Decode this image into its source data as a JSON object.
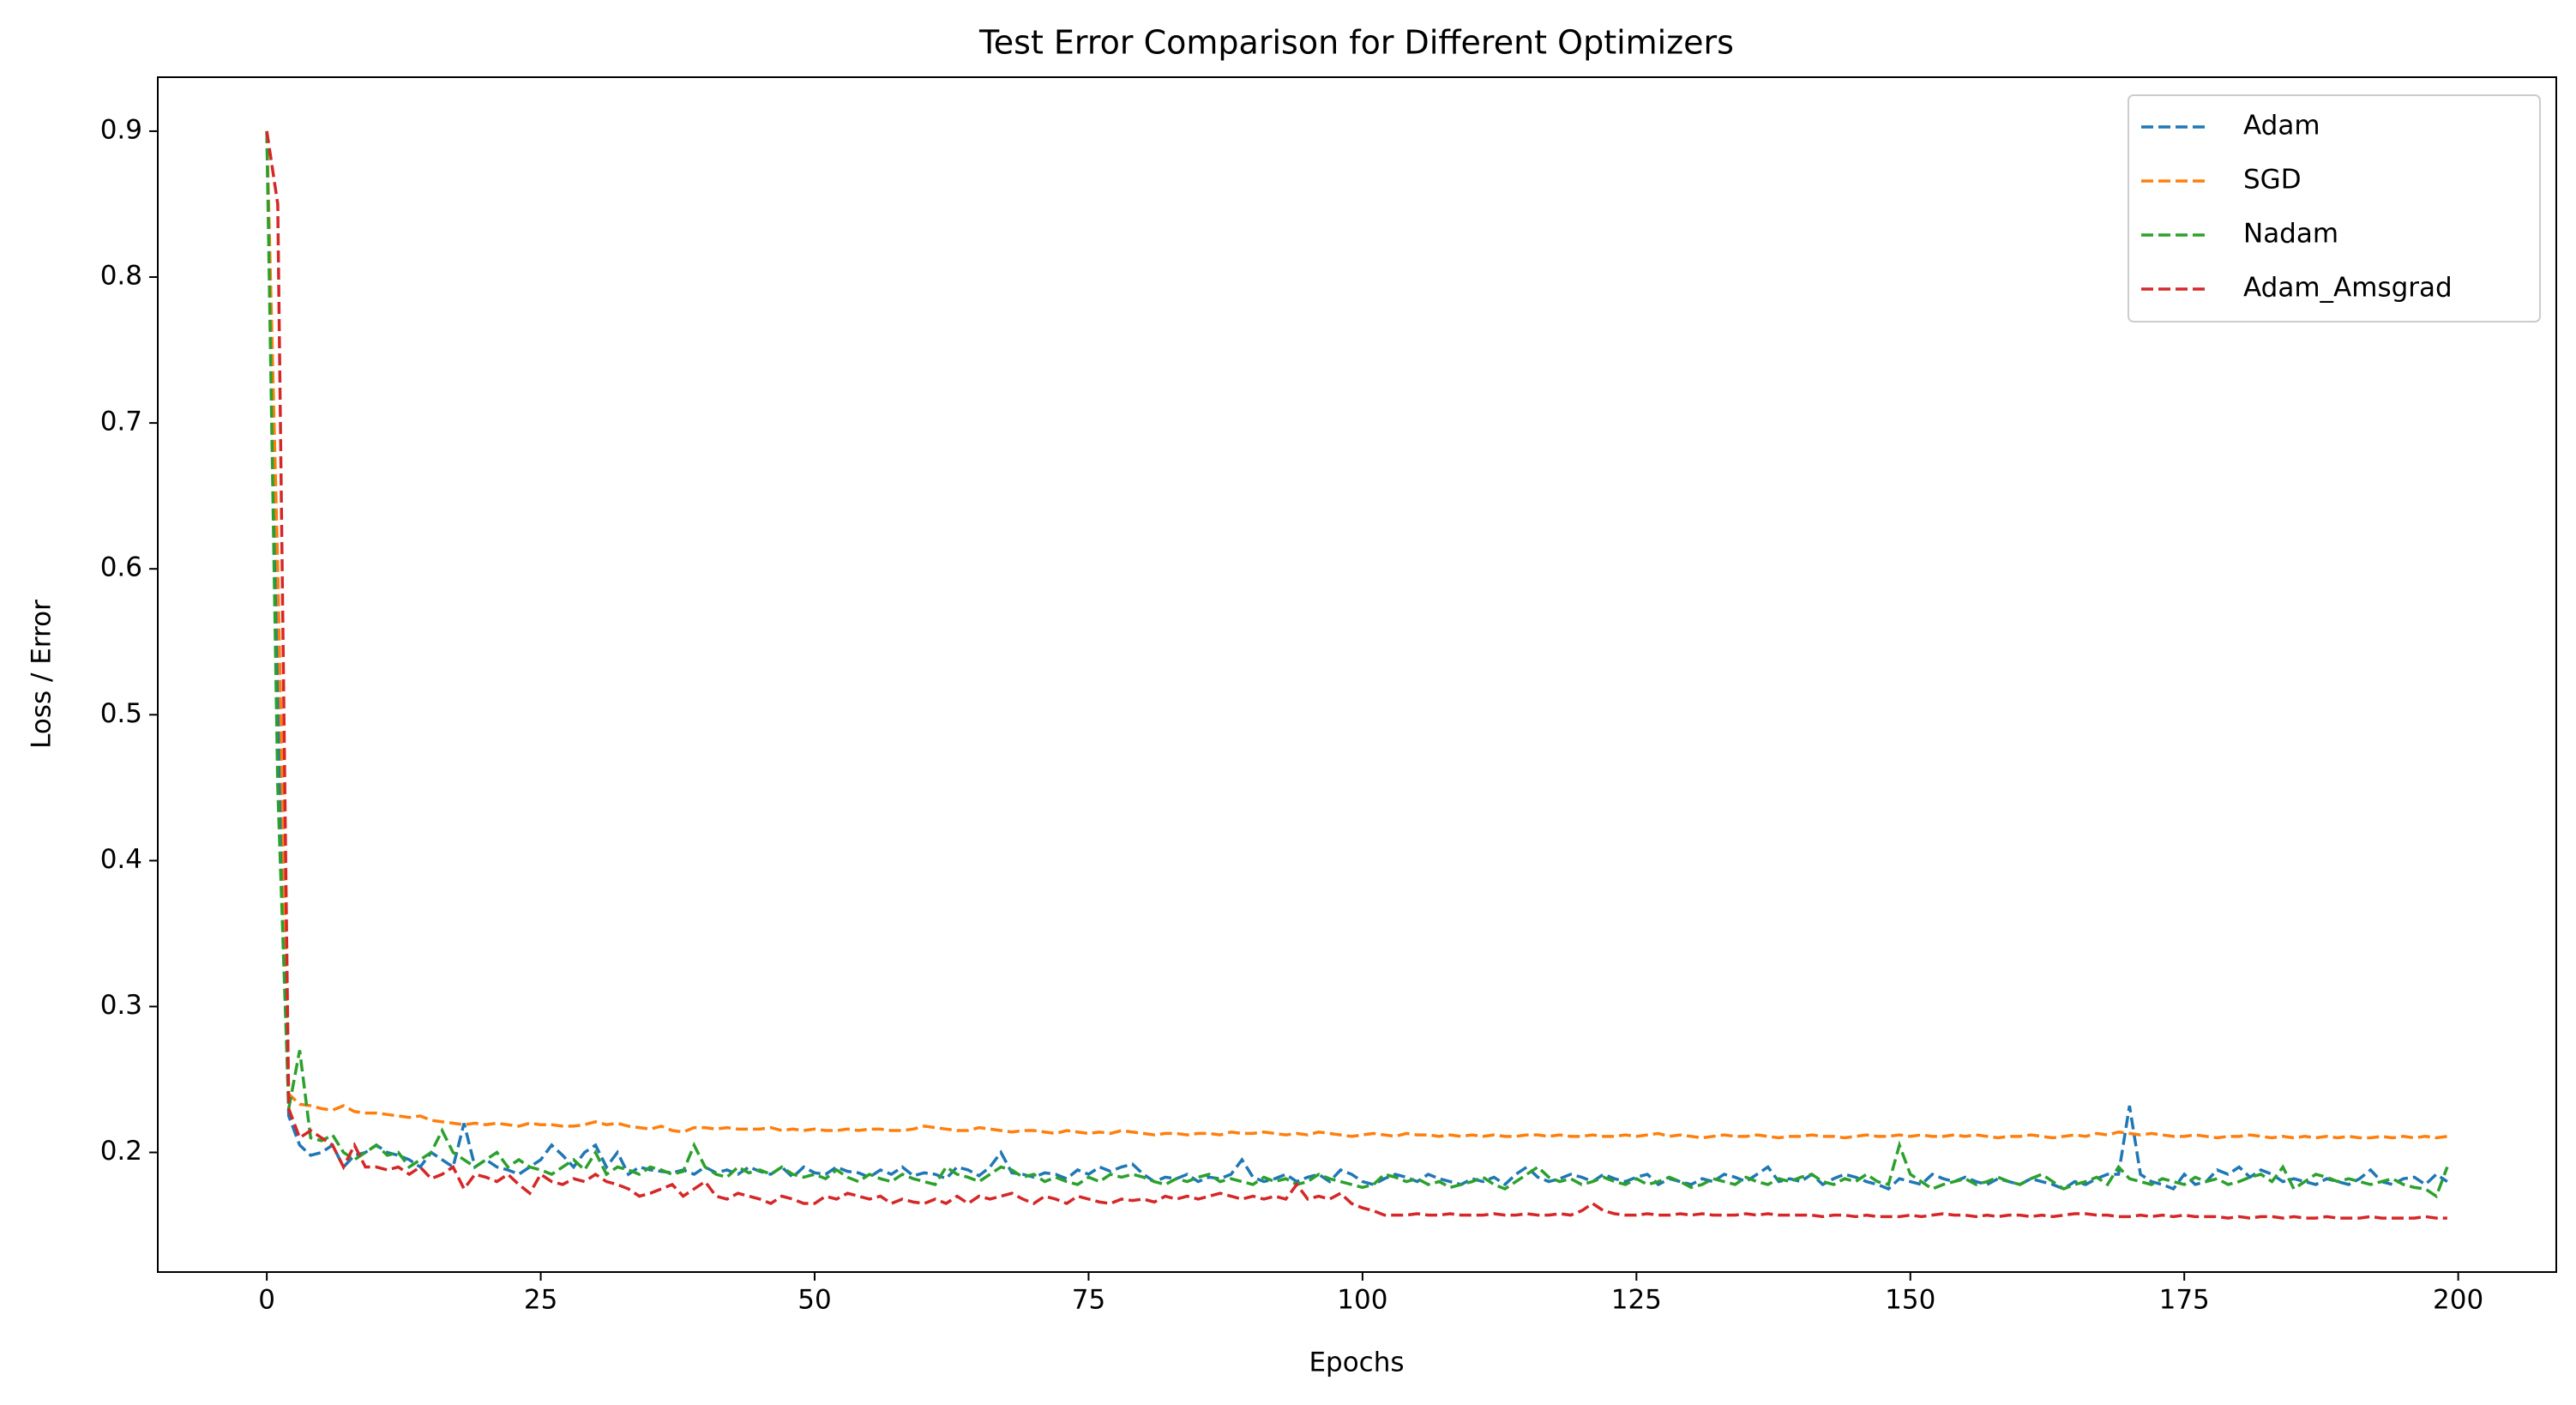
{
  "chart_data": {
    "type": "line",
    "title": "Test Error Comparison for Different Optimizers",
    "xlabel": "Epochs",
    "ylabel": "Loss / Error",
    "x": [
      0,
      1,
      2,
      3,
      4,
      5,
      6,
      7,
      8,
      9,
      10,
      11,
      12,
      13,
      14,
      15,
      16,
      17,
      18,
      19,
      20,
      21,
      22,
      23,
      24,
      25,
      26,
      27,
      28,
      29,
      30,
      31,
      32,
      33,
      34,
      35,
      36,
      37,
      38,
      39,
      40,
      41,
      42,
      43,
      44,
      45,
      46,
      47,
      48,
      49,
      50,
      51,
      52,
      53,
      54,
      55,
      56,
      57,
      58,
      59,
      60,
      61,
      62,
      63,
      64,
      65,
      66,
      67,
      68,
      69,
      70,
      71,
      72,
      73,
      74,
      75,
      76,
      77,
      78,
      79,
      80,
      81,
      82,
      83,
      84,
      85,
      86,
      87,
      88,
      89,
      90,
      91,
      92,
      93,
      94,
      95,
      96,
      97,
      98,
      99,
      100,
      101,
      102,
      103,
      104,
      105,
      106,
      107,
      108,
      109,
      110,
      111,
      112,
      113,
      114,
      115,
      116,
      117,
      118,
      119,
      120,
      121,
      122,
      123,
      124,
      125,
      126,
      127,
      128,
      129,
      130,
      131,
      132,
      133,
      134,
      135,
      136,
      137,
      138,
      139,
      140,
      141,
      142,
      143,
      144,
      145,
      146,
      147,
      148,
      149,
      150,
      151,
      152,
      153,
      154,
      155,
      156,
      157,
      158,
      159,
      160,
      161,
      162,
      163,
      164,
      165,
      166,
      167,
      168,
      169,
      170,
      171,
      172,
      173,
      174,
      175,
      176,
      177,
      178,
      179,
      180,
      181,
      182,
      183,
      184,
      185,
      186,
      187,
      188,
      189,
      190,
      191,
      192,
      193,
      194,
      195,
      196,
      197,
      198,
      199
    ],
    "series": [
      {
        "name": "Adam",
        "color": "#1f77b4",
        "values": [
          0.9,
          0.52,
          0.225,
          0.205,
          0.198,
          0.2,
          0.205,
          0.19,
          0.198,
          0.2,
          0.205,
          0.2,
          0.198,
          0.195,
          0.19,
          0.2,
          0.195,
          0.19,
          0.22,
          0.19,
          0.195,
          0.19,
          0.188,
          0.185,
          0.19,
          0.195,
          0.205,
          0.198,
          0.19,
          0.2,
          0.205,
          0.19,
          0.2,
          0.185,
          0.19,
          0.188,
          0.187,
          0.186,
          0.188,
          0.185,
          0.19,
          0.186,
          0.188,
          0.185,
          0.19,
          0.187,
          0.185,
          0.19,
          0.183,
          0.19,
          0.186,
          0.185,
          0.19,
          0.187,
          0.186,
          0.183,
          0.188,
          0.185,
          0.19,
          0.184,
          0.186,
          0.185,
          0.182,
          0.19,
          0.188,
          0.184,
          0.19,
          0.2,
          0.186,
          0.185,
          0.183,
          0.186,
          0.185,
          0.182,
          0.188,
          0.185,
          0.19,
          0.187,
          0.19,
          0.192,
          0.185,
          0.18,
          0.183,
          0.182,
          0.185,
          0.18,
          0.183,
          0.182,
          0.185,
          0.195,
          0.183,
          0.18,
          0.182,
          0.185,
          0.18,
          0.183,
          0.185,
          0.18,
          0.188,
          0.185,
          0.18,
          0.178,
          0.182,
          0.185,
          0.183,
          0.18,
          0.185,
          0.182,
          0.18,
          0.178,
          0.182,
          0.18,
          0.183,
          0.178,
          0.185,
          0.19,
          0.183,
          0.18,
          0.182,
          0.185,
          0.183,
          0.18,
          0.185,
          0.182,
          0.18,
          0.183,
          0.185,
          0.178,
          0.182,
          0.18,
          0.178,
          0.182,
          0.18,
          0.185,
          0.183,
          0.18,
          0.185,
          0.19,
          0.18,
          0.182,
          0.18,
          0.185,
          0.178,
          0.182,
          0.185,
          0.183,
          0.18,
          0.178,
          0.175,
          0.182,
          0.18,
          0.178,
          0.185,
          0.182,
          0.18,
          0.183,
          0.18,
          0.178,
          0.182,
          0.18,
          0.178,
          0.182,
          0.18,
          0.178,
          0.175,
          0.18,
          0.178,
          0.182,
          0.185,
          0.185,
          0.232,
          0.185,
          0.18,
          0.178,
          0.175,
          0.185,
          0.178,
          0.18,
          0.188,
          0.185,
          0.19,
          0.183,
          0.188,
          0.185,
          0.18,
          0.182,
          0.18,
          0.178,
          0.182,
          0.18,
          0.178,
          0.182,
          0.188,
          0.18,
          0.178,
          0.182,
          0.183,
          0.178,
          0.185,
          0.18
        ]
      },
      {
        "name": "SGD",
        "color": "#ff7f0e",
        "values": [
          0.9,
          0.6,
          0.24,
          0.233,
          0.232,
          0.23,
          0.229,
          0.232,
          0.228,
          0.227,
          0.227,
          0.226,
          0.225,
          0.224,
          0.225,
          0.222,
          0.221,
          0.22,
          0.219,
          0.22,
          0.219,
          0.22,
          0.219,
          0.218,
          0.22,
          0.219,
          0.219,
          0.218,
          0.218,
          0.219,
          0.221,
          0.219,
          0.22,
          0.218,
          0.217,
          0.216,
          0.218,
          0.215,
          0.214,
          0.217,
          0.217,
          0.216,
          0.217,
          0.216,
          0.216,
          0.216,
          0.217,
          0.215,
          0.216,
          0.215,
          0.216,
          0.215,
          0.215,
          0.216,
          0.215,
          0.216,
          0.216,
          0.215,
          0.215,
          0.216,
          0.218,
          0.217,
          0.216,
          0.215,
          0.215,
          0.217,
          0.216,
          0.215,
          0.214,
          0.215,
          0.215,
          0.214,
          0.213,
          0.215,
          0.214,
          0.213,
          0.214,
          0.213,
          0.215,
          0.214,
          0.213,
          0.212,
          0.213,
          0.213,
          0.212,
          0.213,
          0.213,
          0.212,
          0.214,
          0.213,
          0.213,
          0.214,
          0.213,
          0.212,
          0.213,
          0.212,
          0.214,
          0.213,
          0.212,
          0.211,
          0.212,
          0.213,
          0.212,
          0.211,
          0.213,
          0.212,
          0.212,
          0.211,
          0.212,
          0.211,
          0.212,
          0.211,
          0.212,
          0.211,
          0.211,
          0.212,
          0.212,
          0.211,
          0.212,
          0.211,
          0.211,
          0.212,
          0.211,
          0.211,
          0.212,
          0.211,
          0.212,
          0.213,
          0.211,
          0.212,
          0.211,
          0.21,
          0.211,
          0.212,
          0.211,
          0.211,
          0.212,
          0.211,
          0.21,
          0.211,
          0.211,
          0.212,
          0.211,
          0.211,
          0.21,
          0.211,
          0.212,
          0.211,
          0.211,
          0.212,
          0.211,
          0.212,
          0.211,
          0.211,
          0.212,
          0.211,
          0.212,
          0.211,
          0.21,
          0.211,
          0.211,
          0.212,
          0.211,
          0.21,
          0.211,
          0.212,
          0.211,
          0.213,
          0.212,
          0.214,
          0.213,
          0.212,
          0.213,
          0.212,
          0.211,
          0.211,
          0.212,
          0.211,
          0.21,
          0.211,
          0.211,
          0.212,
          0.211,
          0.21,
          0.211,
          0.21,
          0.211,
          0.21,
          0.211,
          0.21,
          0.211,
          0.21,
          0.21,
          0.211,
          0.21,
          0.211,
          0.21,
          0.211,
          0.21,
          0.211
        ]
      },
      {
        "name": "Nadam",
        "color": "#2ca02c",
        "values": [
          0.9,
          0.45,
          0.23,
          0.27,
          0.21,
          0.208,
          0.212,
          0.2,
          0.195,
          0.2,
          0.205,
          0.198,
          0.2,
          0.19,
          0.195,
          0.2,
          0.215,
          0.2,
          0.195,
          0.19,
          0.195,
          0.2,
          0.19,
          0.195,
          0.19,
          0.188,
          0.185,
          0.19,
          0.195,
          0.188,
          0.2,
          0.185,
          0.19,
          0.188,
          0.185,
          0.19,
          0.188,
          0.185,
          0.187,
          0.205,
          0.19,
          0.185,
          0.183,
          0.19,
          0.186,
          0.188,
          0.185,
          0.19,
          0.185,
          0.183,
          0.185,
          0.182,
          0.188,
          0.183,
          0.18,
          0.185,
          0.182,
          0.18,
          0.185,
          0.182,
          0.18,
          0.178,
          0.19,
          0.185,
          0.183,
          0.18,
          0.185,
          0.19,
          0.188,
          0.183,
          0.185,
          0.18,
          0.183,
          0.18,
          0.178,
          0.183,
          0.18,
          0.185,
          0.183,
          0.185,
          0.183,
          0.18,
          0.178,
          0.182,
          0.18,
          0.183,
          0.185,
          0.18,
          0.182,
          0.18,
          0.178,
          0.183,
          0.18,
          0.182,
          0.178,
          0.18,
          0.185,
          0.182,
          0.18,
          0.178,
          0.176,
          0.178,
          0.185,
          0.183,
          0.18,
          0.182,
          0.178,
          0.18,
          0.176,
          0.178,
          0.18,
          0.183,
          0.178,
          0.175,
          0.18,
          0.185,
          0.19,
          0.183,
          0.18,
          0.182,
          0.178,
          0.18,
          0.183,
          0.18,
          0.178,
          0.182,
          0.178,
          0.18,
          0.183,
          0.18,
          0.176,
          0.178,
          0.182,
          0.18,
          0.178,
          0.183,
          0.18,
          0.178,
          0.182,
          0.18,
          0.183,
          0.185,
          0.18,
          0.178,
          0.182,
          0.18,
          0.185,
          0.18,
          0.178,
          0.205,
          0.185,
          0.18,
          0.175,
          0.178,
          0.18,
          0.182,
          0.178,
          0.18,
          0.183,
          0.18,
          0.178,
          0.182,
          0.185,
          0.18,
          0.175,
          0.178,
          0.18,
          0.183,
          0.178,
          0.19,
          0.182,
          0.18,
          0.178,
          0.182,
          0.18,
          0.178,
          0.183,
          0.18,
          0.182,
          0.178,
          0.18,
          0.183,
          0.185,
          0.18,
          0.19,
          0.175,
          0.18,
          0.185,
          0.183,
          0.18,
          0.182,
          0.18,
          0.178,
          0.18,
          0.182,
          0.178,
          0.176,
          0.175,
          0.17,
          0.19
        ]
      },
      {
        "name": "Adam_Amsgrad",
        "color": "#d62728",
        "values": [
          0.9,
          0.85,
          0.23,
          0.21,
          0.215,
          0.21,
          0.205,
          0.19,
          0.205,
          0.19,
          0.19,
          0.188,
          0.19,
          0.185,
          0.19,
          0.182,
          0.185,
          0.19,
          0.175,
          0.185,
          0.183,
          0.18,
          0.185,
          0.178,
          0.172,
          0.185,
          0.18,
          0.178,
          0.182,
          0.18,
          0.185,
          0.18,
          0.178,
          0.175,
          0.17,
          0.172,
          0.175,
          0.178,
          0.17,
          0.175,
          0.18,
          0.17,
          0.168,
          0.172,
          0.17,
          0.168,
          0.165,
          0.17,
          0.168,
          0.165,
          0.165,
          0.17,
          0.168,
          0.172,
          0.17,
          0.168,
          0.17,
          0.165,
          0.168,
          0.166,
          0.165,
          0.168,
          0.165,
          0.17,
          0.165,
          0.17,
          0.168,
          0.17,
          0.172,
          0.168,
          0.165,
          0.17,
          0.168,
          0.165,
          0.17,
          0.168,
          0.166,
          0.165,
          0.168,
          0.167,
          0.168,
          0.166,
          0.17,
          0.168,
          0.17,
          0.168,
          0.17,
          0.172,
          0.17,
          0.168,
          0.17,
          0.168,
          0.17,
          0.168,
          0.178,
          0.168,
          0.17,
          0.168,
          0.172,
          0.165,
          0.162,
          0.16,
          0.157,
          0.157,
          0.157,
          0.158,
          0.157,
          0.157,
          0.158,
          0.157,
          0.157,
          0.157,
          0.158,
          0.157,
          0.157,
          0.158,
          0.157,
          0.157,
          0.158,
          0.157,
          0.16,
          0.165,
          0.16,
          0.158,
          0.157,
          0.157,
          0.158,
          0.157,
          0.157,
          0.158,
          0.157,
          0.158,
          0.157,
          0.157,
          0.157,
          0.158,
          0.157,
          0.158,
          0.157,
          0.157,
          0.157,
          0.157,
          0.156,
          0.157,
          0.157,
          0.156,
          0.157,
          0.156,
          0.156,
          0.156,
          0.157,
          0.156,
          0.157,
          0.158,
          0.157,
          0.157,
          0.156,
          0.157,
          0.156,
          0.157,
          0.157,
          0.156,
          0.157,
          0.156,
          0.157,
          0.158,
          0.158,
          0.157,
          0.157,
          0.156,
          0.156,
          0.157,
          0.156,
          0.157,
          0.156,
          0.157,
          0.156,
          0.156,
          0.156,
          0.155,
          0.156,
          0.155,
          0.156,
          0.156,
          0.155,
          0.156,
          0.155,
          0.155,
          0.156,
          0.155,
          0.155,
          0.155,
          0.156,
          0.155,
          0.155,
          0.155,
          0.155,
          0.156,
          0.155,
          0.155
        ]
      }
    ],
    "xlim": [
      -9.95,
      208.95
    ],
    "ylim": [
      0.118,
      0.937
    ],
    "xticks": [
      0,
      25,
      50,
      75,
      100,
      125,
      150,
      175,
      200
    ],
    "yticks": [
      0.2,
      0.3,
      0.4,
      0.5,
      0.6,
      0.7,
      0.8,
      0.9
    ],
    "grid": false,
    "legend": "upper right",
    "linestyle": "dashed"
  }
}
